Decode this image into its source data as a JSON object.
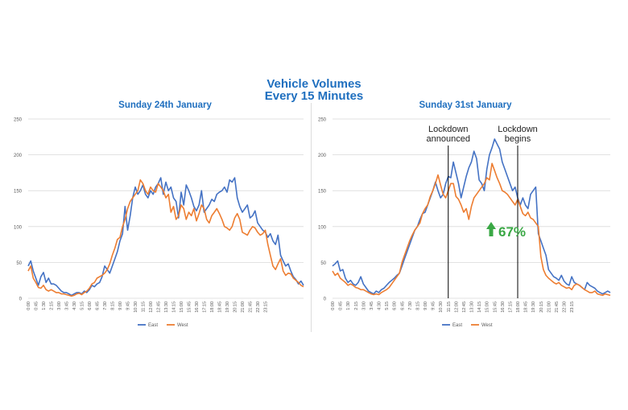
{
  "title_line1": "Vehicle Volumes",
  "title_line2": "Every 15 Minutes",
  "colors": {
    "title": "#1f6fbf",
    "east": "#4472c4",
    "west": "#ed7d31",
    "increase": "#3aa845",
    "grid": "#d9d9d9",
    "axis_text": "#595959",
    "annotation_line": "#000000"
  },
  "chart_data": [
    {
      "type": "line",
      "title": "Sunday 24th January",
      "ylim": [
        0,
        250
      ],
      "yticks": [
        0,
        50,
        100,
        150,
        200,
        250
      ],
      "xlabels": [
        "0:00",
        "0:45",
        "1:30",
        "2:15",
        "3:00",
        "3:45",
        "4:30",
        "5:15",
        "6:00",
        "6:45",
        "7:30",
        "8:15",
        "9:00",
        "9:45",
        "10:30",
        "11:15",
        "12:00",
        "12:45",
        "13:30",
        "14:15",
        "15:00",
        "15:45",
        "16:30",
        "17:15",
        "18:00",
        "18:45",
        "19:30",
        "20:15",
        "21:00",
        "21:45",
        "22:30",
        "23:15"
      ],
      "legend": [
        "East",
        "West"
      ],
      "series": [
        {
          "name": "East",
          "values": [
            45,
            52,
            38,
            28,
            18,
            30,
            36,
            22,
            28,
            20,
            20,
            18,
            14,
            10,
            8,
            8,
            6,
            4,
            6,
            8,
            8,
            6,
            10,
            8,
            12,
            18,
            16,
            20,
            22,
            30,
            45,
            40,
            35,
            45,
            55,
            65,
            80,
            90,
            128,
            95,
            115,
            140,
            155,
            145,
            150,
            158,
            145,
            140,
            150,
            145,
            155,
            160,
            168,
            145,
            162,
            150,
            155,
            140,
            135,
            112,
            148,
            130,
            158,
            150,
            140,
            128,
            122,
            130,
            150,
            120,
            125,
            130,
            138,
            135,
            145,
            148,
            150,
            155,
            148,
            165,
            162,
            168,
            140,
            128,
            120,
            125,
            130,
            112,
            115,
            122,
            105,
            100,
            95,
            92,
            85,
            90,
            80,
            75,
            88,
            60,
            52,
            45,
            48,
            38,
            30,
            26,
            20,
            24,
            18
          ]
        },
        {
          "name": "West",
          "values": [
            38,
            45,
            28,
            22,
            15,
            14,
            18,
            12,
            10,
            12,
            10,
            8,
            8,
            6,
            6,
            5,
            4,
            3,
            4,
            6,
            7,
            5,
            8,
            10,
            14,
            20,
            22,
            28,
            30,
            32,
            35,
            40,
            48,
            60,
            70,
            82,
            85,
            100,
            110,
            125,
            135,
            140,
            145,
            150,
            165,
            160,
            150,
            145,
            155,
            150,
            148,
            160,
            155,
            150,
            140,
            145,
            120,
            128,
            110,
            115,
            130,
            125,
            110,
            120,
            115,
            125,
            108,
            118,
            130,
            125,
            110,
            105,
            115,
            120,
            125,
            118,
            110,
            100,
            98,
            95,
            100,
            112,
            118,
            110,
            92,
            90,
            88,
            95,
            100,
            98,
            92,
            88,
            90,
            95,
            75,
            60,
            45,
            40,
            48,
            55,
            38,
            32,
            35,
            34,
            28,
            25,
            22,
            18,
            16
          ]
        }
      ]
    },
    {
      "type": "line",
      "title": "Sunday 31st January",
      "ylim": [
        0,
        250
      ],
      "yticks": [
        0,
        50,
        100,
        150,
        200,
        250
      ],
      "xlabels": [
        "0:00",
        "0:45",
        "1:30",
        "2:15",
        "3:00",
        "3:45",
        "4:30",
        "5:15",
        "6:00",
        "6:45",
        "7:30",
        "8:15",
        "9:00",
        "9:45",
        "10:30",
        "11:15",
        "12:00",
        "12:45",
        "13:30",
        "14:15",
        "15:00",
        "15:45",
        "16:30",
        "17:15",
        "18:00",
        "18:45",
        "19:30",
        "20:15",
        "21:00",
        "21:45",
        "22:30",
        "23:15"
      ],
      "legend": [
        "East",
        "West"
      ],
      "series": [
        {
          "name": "East",
          "values": [
            45,
            48,
            52,
            38,
            40,
            28,
            22,
            25,
            20,
            18,
            22,
            30,
            20,
            15,
            10,
            8,
            6,
            10,
            8,
            12,
            14,
            18,
            22,
            25,
            28,
            32,
            35,
            45,
            55,
            65,
            75,
            85,
            95,
            100,
            110,
            118,
            120,
            130,
            140,
            150,
            162,
            150,
            140,
            145,
            160,
            170,
            168,
            190,
            175,
            160,
            140,
            155,
            170,
            182,
            190,
            205,
            195,
            165,
            160,
            150,
            180,
            200,
            210,
            222,
            215,
            208,
            190,
            180,
            170,
            160,
            150,
            155,
            140,
            130,
            140,
            130,
            125,
            145,
            150,
            155,
            90,
            80,
            70,
            60,
            40,
            35,
            30,
            28,
            25,
            32,
            24,
            20,
            18,
            30,
            22,
            20,
            18,
            15,
            12,
            22,
            18,
            16,
            14,
            10,
            8,
            6,
            8,
            10,
            8
          ]
        },
        {
          "name": "West",
          "values": [
            38,
            32,
            35,
            28,
            25,
            22,
            18,
            20,
            18,
            15,
            14,
            12,
            12,
            10,
            8,
            6,
            5,
            6,
            5,
            8,
            10,
            12,
            15,
            20,
            25,
            30,
            35,
            50,
            60,
            70,
            80,
            88,
            95,
            100,
            105,
            118,
            125,
            130,
            142,
            150,
            160,
            172,
            158,
            145,
            140,
            150,
            160,
            160,
            142,
            138,
            130,
            120,
            125,
            110,
            128,
            140,
            145,
            150,
            155,
            160,
            168,
            165,
            188,
            178,
            168,
            160,
            150,
            148,
            145,
            140,
            135,
            130,
            138,
            128,
            118,
            115,
            120,
            112,
            110,
            105,
            100,
            58,
            40,
            32,
            28,
            25,
            22,
            20,
            22,
            18,
            16,
            14,
            15,
            12,
            18,
            20,
            18,
            15,
            12,
            10,
            8,
            8,
            10,
            6,
            5,
            4,
            6,
            5,
            4
          ]
        }
      ]
    }
  ],
  "annotations": {
    "lockdown_announced_line1": "Lockdown",
    "lockdown_announced_line2": "announced",
    "lockdown_begins_line1": "Lockdown",
    "lockdown_begins_line2": "begins",
    "increase_label": "67%",
    "lockdown_announced_time": "11:15",
    "lockdown_begins_time": "18:00"
  }
}
